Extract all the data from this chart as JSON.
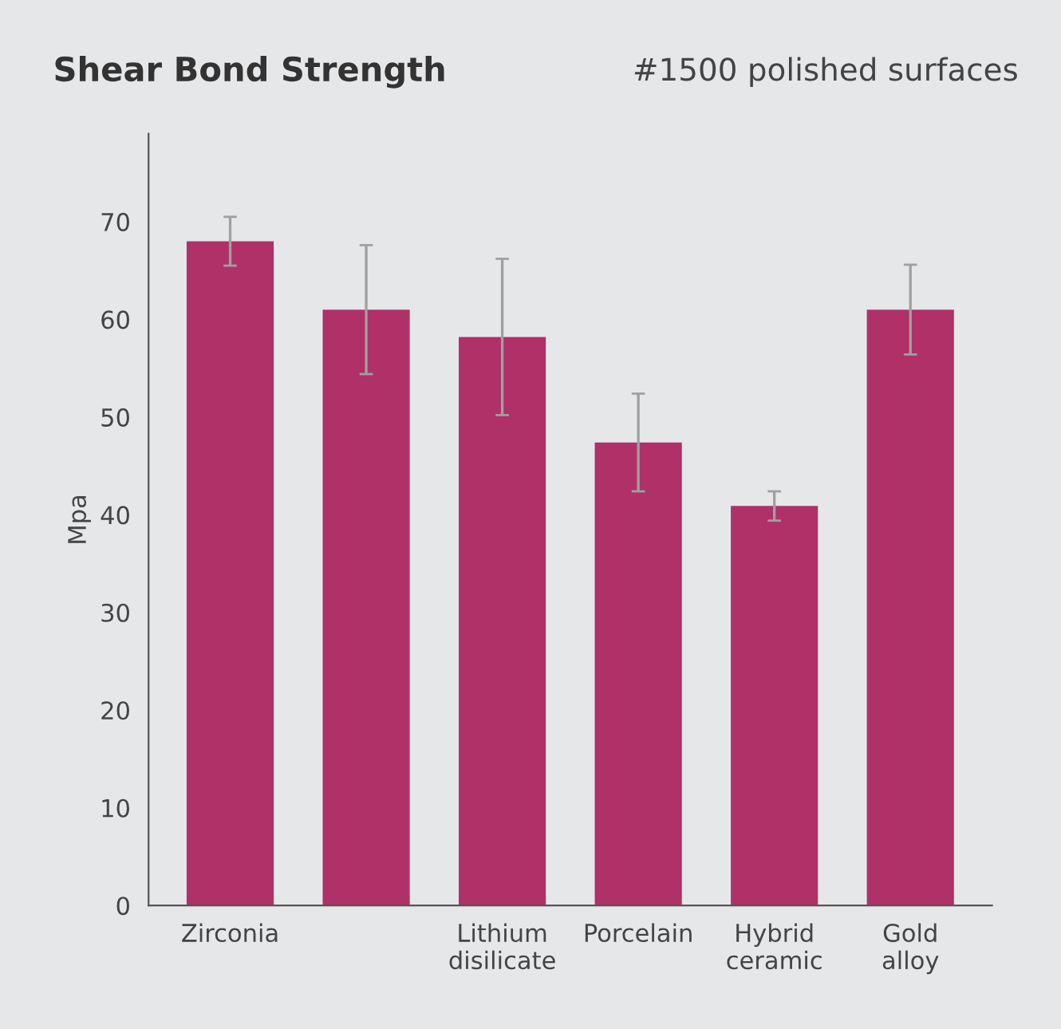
{
  "chart_data": {
    "type": "bar",
    "title": "Shear Bond Strength",
    "subtitle": "#1500 polished surfaces",
    "ylabel": "Mpa",
    "categories": [
      "Zirconia",
      null,
      "Lithium\ndisilicate",
      "Porcelain",
      "Hybrid\nceramic",
      "Gold\nalloy"
    ],
    "values": [
      68,
      61,
      58.2,
      47.4,
      40.9,
      61
    ],
    "errors": [
      2.5,
      6.6,
      8,
      5,
      1.5,
      4.6
    ],
    "color": "#b03068",
    "ylim": [
      0,
      79
    ],
    "yticks": [
      0,
      10,
      20,
      30,
      40,
      50,
      60,
      70
    ],
    "grid": false,
    "legend": false
  }
}
